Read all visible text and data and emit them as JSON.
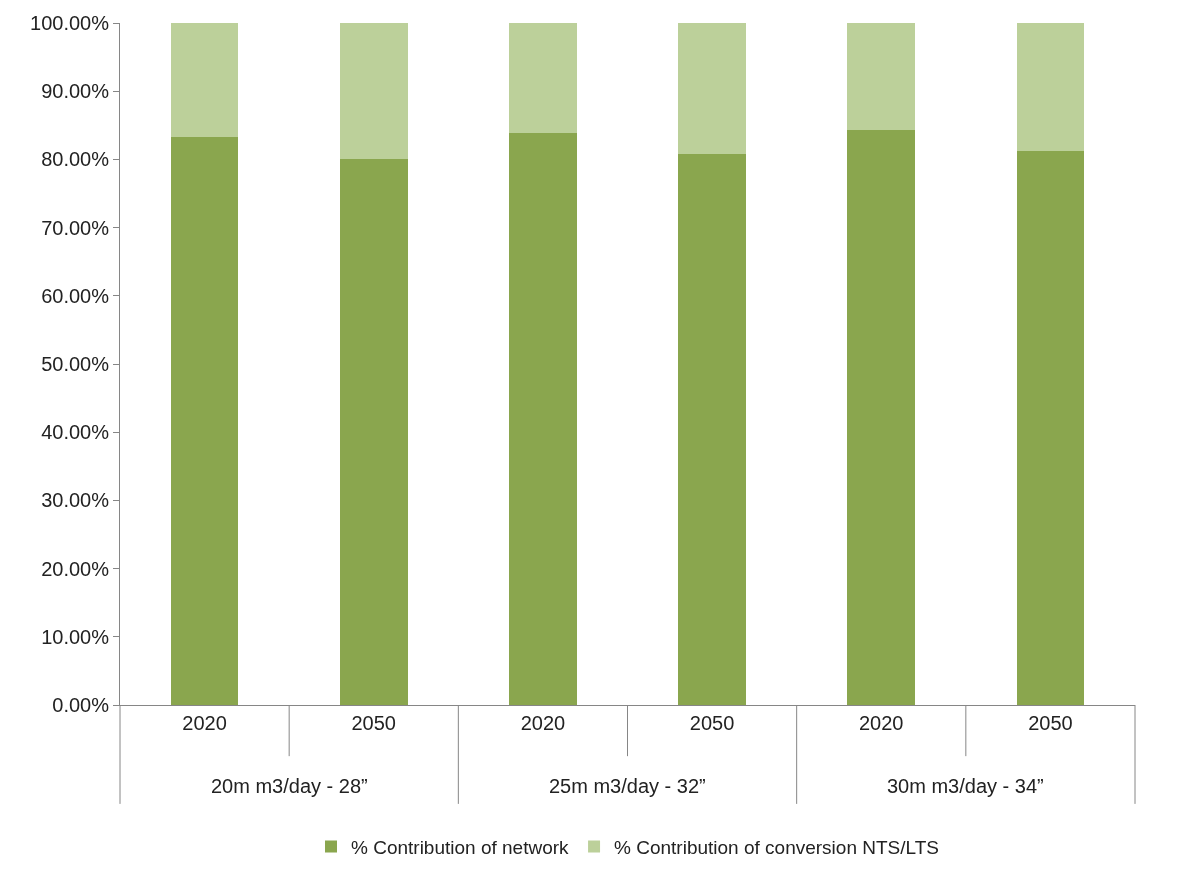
{
  "chart_data": {
    "type": "bar",
    "stacked": true,
    "categories": [
      "2020",
      "2050",
      "2020",
      "2050",
      "2020",
      "2050"
    ],
    "series": [
      {
        "name": "% Contribution of network",
        "color": "#8aa64e",
        "values": [
          83.3,
          80.1,
          83.9,
          80.8,
          84.3,
          81.2
        ]
      },
      {
        "name": "% Contribution of conversion NTS/LTS",
        "color": "#bcd09a",
        "values": [
          16.7,
          19.9,
          16.1,
          19.2,
          15.7,
          18.8
        ]
      }
    ],
    "annotations": [
      "20m m3/day - 28”",
      "25m m3/day - 32”",
      "30m m3/day - 34”"
    ],
    "ylim": [
      0,
      100
    ],
    "yticks": [
      {
        "value": 0,
        "label": "0.00%"
      },
      {
        "value": 10,
        "label": "10.00%"
      },
      {
        "value": 20,
        "label": "20.00%"
      },
      {
        "value": 30,
        "label": "30.00%"
      },
      {
        "value": 40,
        "label": "40.00%"
      },
      {
        "value": 50,
        "label": "50.00%"
      },
      {
        "value": 60,
        "label": "60.00%"
      },
      {
        "value": 70,
        "label": "70.00%"
      },
      {
        "value": 80,
        "label": "80.00%"
      },
      {
        "value": 90,
        "label": "90.00%"
      },
      {
        "value": 100,
        "label": "100.00%"
      }
    ],
    "grid": false,
    "legend": "bottom"
  }
}
